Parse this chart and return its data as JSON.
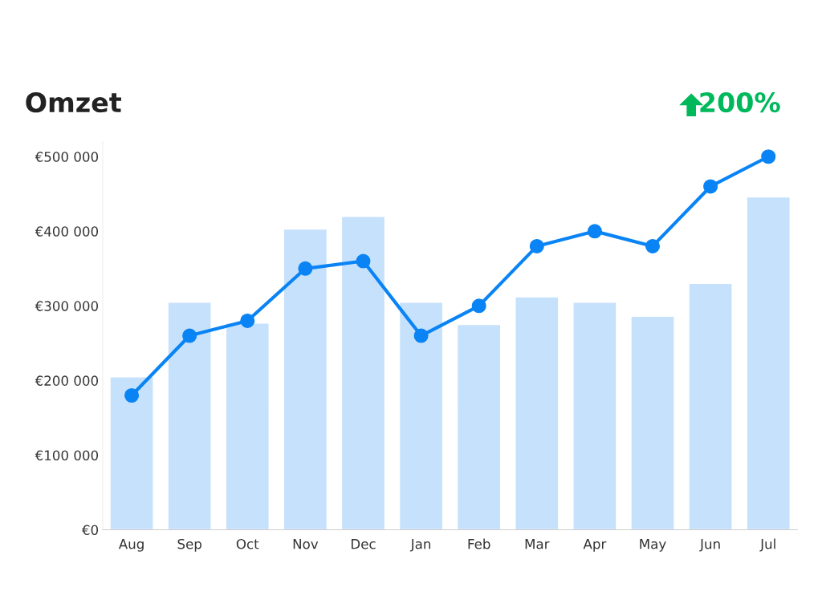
{
  "chart_data": {
    "type": "bar",
    "title": "Omzet",
    "annotations": [
      "200%"
    ],
    "categories": [
      "Aug",
      "Sep",
      "Oct",
      "Nov",
      "Dec",
      "Jan",
      "Feb",
      "Mar",
      "Apr",
      "May",
      "Jun",
      "Jul"
    ],
    "series": [
      {
        "color": "#c6e1fb",
        "values": [
          205000,
          305000,
          277000,
          403000,
          420000,
          305000,
          275000,
          312000,
          305000,
          286000,
          330000,
          446000
        ]
      },
      {
        "type": "line",
        "color": "#0a84f5",
        "marker": "circle",
        "values": [
          180000,
          260000,
          280000,
          350000,
          360000,
          260000,
          300000,
          380000,
          400000,
          380000,
          460000,
          500000
        ]
      }
    ],
    "ylim": [
      0,
      520000
    ],
    "yticks": [
      {
        "value": 0,
        "label": "€0"
      },
      {
        "value": 100000,
        "label": "€100 000"
      },
      {
        "value": 200000,
        "label": "€200 000"
      },
      {
        "value": 300000,
        "label": "€300 000"
      },
      {
        "value": 400000,
        "label": "€400 000"
      },
      {
        "value": 500000,
        "label": "€500 000"
      }
    ],
    "grid": false,
    "legend": false
  }
}
